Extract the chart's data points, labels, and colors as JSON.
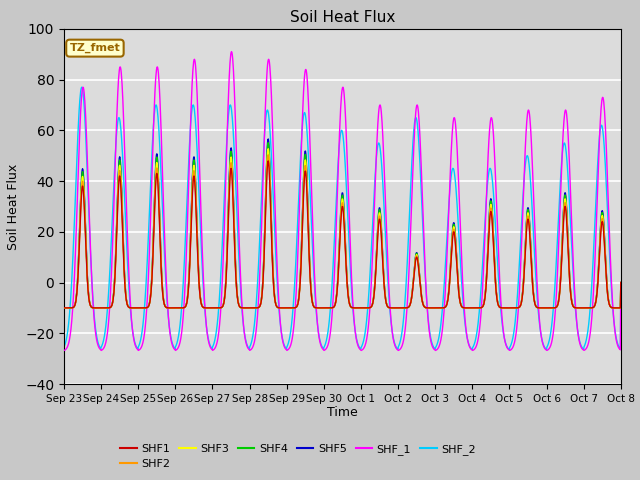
{
  "title": "Soil Heat Flux",
  "xlabel": "Time",
  "ylabel": "Soil Heat Flux",
  "ylim": [
    -40,
    100
  ],
  "yticks": [
    -40,
    -20,
    0,
    20,
    40,
    60,
    80,
    100
  ],
  "series": [
    "SHF1",
    "SHF2",
    "SHF3",
    "SHF4",
    "SHF5",
    "SHF_1",
    "SHF_2"
  ],
  "colors": [
    "#cc0000",
    "#ff9900",
    "#ffff00",
    "#00cc00",
    "#0000cc",
    "#ff00ff",
    "#00ccff"
  ],
  "annotation_text": "TZ_fmet",
  "annotation_bg": "#ffffcc",
  "annotation_border": "#996600",
  "plot_bg": "#dcdcdc",
  "fig_bg": "#c8c8c8",
  "tick_labels": [
    "Sep 23",
    "Sep 24",
    "Sep 25",
    "Sep 26",
    "Sep 27",
    "Sep 28",
    "Sep 29",
    "Sep 30",
    "Oct 1",
    "Oct 2",
    "Oct 3",
    "Oct 4",
    "Oct 5",
    "Oct 6",
    "Oct 7",
    "Oct 8"
  ],
  "n_days": 15,
  "pts_per_day": 96,
  "shf_peak_scales": [
    38,
    42,
    43,
    42,
    45,
    48,
    44,
    30,
    25,
    10,
    20,
    28,
    25,
    30,
    24
  ],
  "shf_trough": -10,
  "shf1_offsets": [
    0.0,
    0.0,
    0.0,
    0.0,
    0.0,
    0.0,
    0.0,
    0.0,
    0.0,
    0.0,
    0.0,
    0.0,
    0.0,
    0.0,
    0.0
  ],
  "shf2_offsets": [
    0.5,
    0.5,
    0.5,
    0.5,
    0.5,
    0.5,
    0.5,
    0.5,
    0.5,
    0.5,
    0.5,
    0.5,
    0.5,
    0.5,
    0.5
  ],
  "shf3_offsets": [
    1.0,
    1.0,
    1.0,
    1.0,
    1.0,
    1.0,
    1.0,
    1.0,
    1.0,
    1.0,
    1.0,
    1.0,
    1.0,
    1.0,
    1.0
  ],
  "shf4_offsets": [
    1.5,
    1.5,
    1.5,
    1.5,
    1.5,
    1.5,
    1.5,
    1.5,
    1.5,
    1.5,
    1.5,
    1.5,
    1.5,
    1.5,
    1.5
  ],
  "shf5_offsets": [
    2.0,
    2.0,
    2.0,
    2.0,
    2.0,
    2.0,
    2.0,
    2.0,
    2.0,
    2.0,
    2.0,
    2.0,
    2.0,
    2.0,
    2.0
  ],
  "shf_1_peak_scales": [
    77,
    85,
    85,
    88,
    91,
    88,
    84,
    77,
    70,
    70,
    65,
    65,
    68,
    68,
    73
  ],
  "shf_2_peak_scales": [
    77,
    65,
    70,
    70,
    70,
    68,
    67,
    60,
    55,
    65,
    45,
    45,
    50,
    55,
    62
  ],
  "shf_1_trough": -27,
  "shf_2_trough": -27,
  "peak_sigma": 1.8,
  "peak_hour": 12,
  "night_trough_hour": 0
}
